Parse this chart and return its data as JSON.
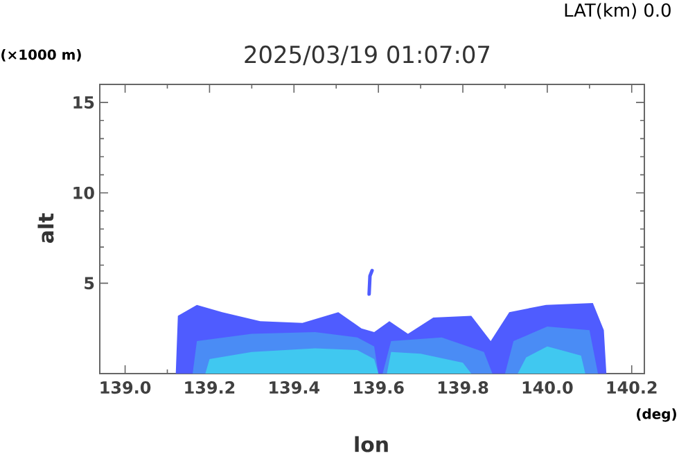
{
  "chart_data": {
    "type": "area",
    "title": "2025/03/19 01:07:07",
    "xlabel": "lon",
    "ylabel": "alt",
    "annotations": [
      "LAT(km) 0.0",
      "(×1000 m)",
      "(deg)"
    ],
    "xlim": [
      138.94,
      140.23
    ],
    "ylim": [
      0,
      16
    ],
    "xticks": [
      {
        "value": 139.0,
        "label": "139.0"
      },
      {
        "value": 139.2,
        "label": "139.2"
      },
      {
        "value": 139.4,
        "label": "139.4"
      },
      {
        "value": 139.6,
        "label": "139.6"
      },
      {
        "value": 139.8,
        "label": "139.8"
      },
      {
        "value": 140.0,
        "label": "140.0"
      },
      {
        "value": 140.2,
        "label": "140.2"
      }
    ],
    "yticks": [
      5,
      10,
      15
    ],
    "series": [
      {
        "color": "#4f5cff",
        "x": [
          139.12,
          139.125,
          139.17,
          139.23,
          139.32,
          139.42,
          139.505,
          139.56,
          139.59,
          139.626,
          139.67,
          139.73,
          139.82,
          139.866,
          139.91,
          139.997,
          140.108,
          140.134,
          140.14
        ],
        "values": [
          0,
          3.2,
          3.8,
          3.4,
          2.9,
          2.8,
          3.4,
          2.5,
          2.3,
          2.9,
          2.2,
          3.1,
          3.2,
          1.8,
          3.4,
          3.8,
          3.9,
          2.4,
          0
        ]
      },
      {
        "color": "#4a8cf5",
        "x": [
          139.16,
          139.17,
          139.3,
          139.45,
          139.55,
          139.59,
          139.6,
          139.61,
          139.63,
          139.75,
          139.85,
          139.87,
          139.9,
          139.92,
          140.0,
          140.1,
          140.12
        ],
        "values": [
          0,
          1.8,
          2.2,
          2.3,
          2.0,
          1.5,
          0,
          0,
          1.8,
          2.0,
          1.2,
          0,
          0,
          1.8,
          2.6,
          2.4,
          0
        ]
      },
      {
        "color": "#40c8f0",
        "x": [
          139.19,
          139.2,
          139.3,
          139.45,
          139.55,
          139.59,
          139.6,
          139.62,
          139.63,
          139.7,
          139.8,
          139.82,
          139.93,
          139.95,
          140.0,
          140.08,
          140.09
        ],
        "values": [
          0,
          0.8,
          1.2,
          1.4,
          1.3,
          0.8,
          0,
          0,
          1.2,
          1.1,
          0.6,
          0,
          0,
          0.9,
          1.5,
          1.0,
          0
        ]
      },
      {
        "type": "line",
        "color": "#4f5cff",
        "x": [
          139.578,
          139.58,
          139.585
        ],
        "values": [
          4.4,
          5.4,
          5.7
        ]
      }
    ]
  }
}
